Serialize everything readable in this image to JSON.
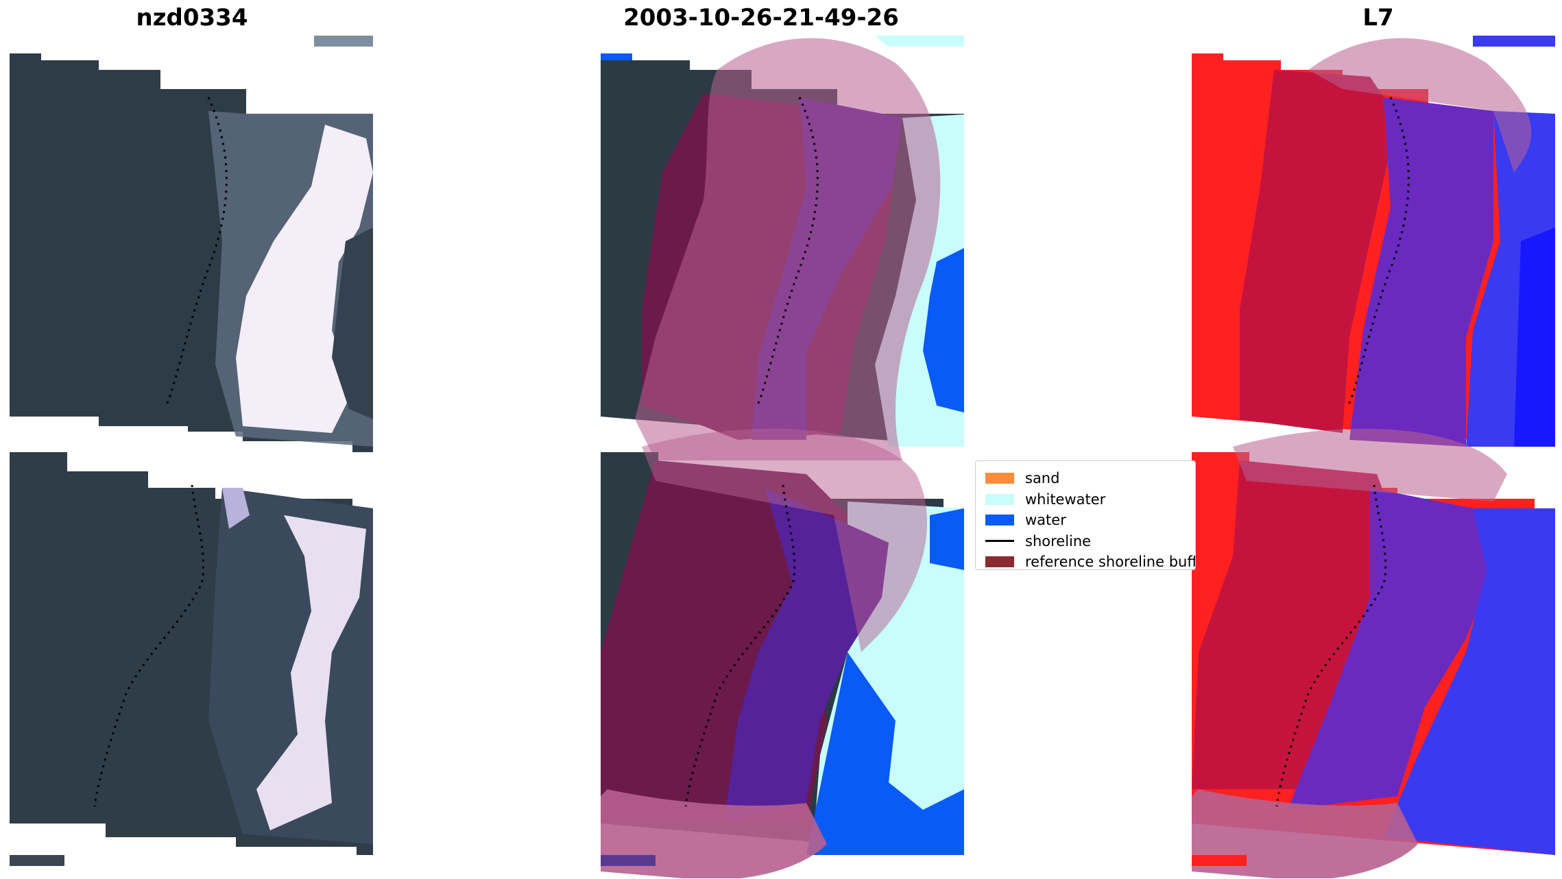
{
  "titles": {
    "left": "nzd0334",
    "center": "2003-10-26-21-49-26",
    "right": "L7"
  },
  "legend": {
    "items": [
      {
        "label": "sand",
        "color": "#ff8c3a",
        "kind": "patch"
      },
      {
        "label": "whitewater",
        "color": "#c8fdfc",
        "kind": "patch"
      },
      {
        "label": "water",
        "color": "#0a5af5",
        "kind": "patch"
      },
      {
        "label": "shoreline",
        "color": "#000000",
        "kind": "line"
      },
      {
        "label": "reference shoreline buff",
        "color": "#8b2b2f",
        "kind": "patch"
      }
    ]
  },
  "colors": {
    "land": "#2c3a44",
    "whitewater": "#f4eef6",
    "water": "#0a5af5",
    "water_label": "#c8fdfc",
    "buffer": "#b8608f",
    "buffer_dark": "#6b1a4a",
    "shore_zone": "#55229a",
    "mndwi_land": "#ff2020",
    "mndwi_mid": "#c4143e",
    "mndwi_water": "#6a2ac0",
    "mndwi_sea": "#3040ff"
  }
}
